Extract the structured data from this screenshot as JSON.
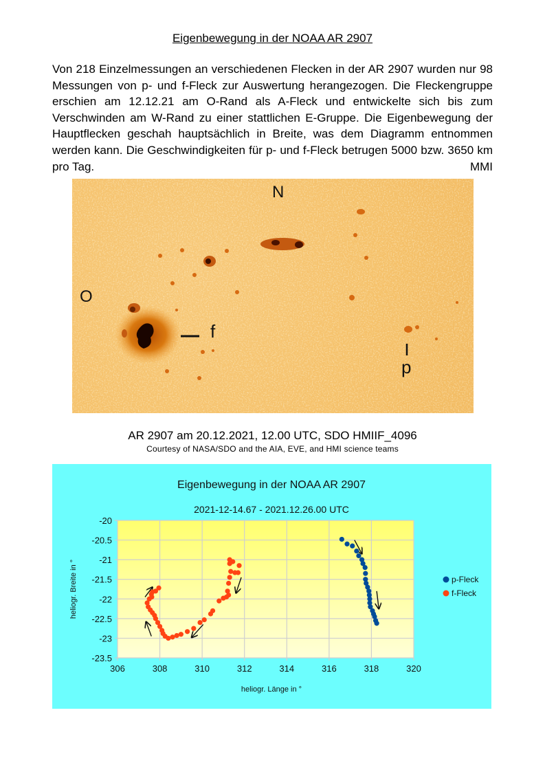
{
  "document": {
    "title": "Eigenbewegung in der NOAA AR 2907",
    "intro_text": "Von 218 Einzelmessungen an verschiedenen Flecken in der AR 2907 wurden nur 98 Messungen von p- und f-Fleck zur Auswertung herangezogen. Die Fleckengruppe erschien am 12.12.21 am O-Rand als A-Fleck und entwickelte sich bis zum Verschwinden am W-Rand zu einer stattlichen E-Gruppe. Die Eigenbewegung der Hauptflecken geschah hauptsächlich in Breite, was dem Diagramm  entnommen werden kann.  Die Geschwindigkeiten für p- und f-Fleck betrugen 5000 bzw. 3650 km pro Tag.",
    "signature": "MMI"
  },
  "solar_image": {
    "labels": {
      "north": "N",
      "east": "O",
      "f_spot": "f",
      "p_spot": "p"
    },
    "caption": "AR 2907 am 20.12.2021, 12.00 UTC, SDO HMIIF_4096",
    "credit": "Courtesy of NASA/SDO and the AIA, EVE, and HMI science teams"
  },
  "colors": {
    "panel_bg": "#6cfefe",
    "plot_top": "#ffff6e",
    "plot_bottom": "#ffffd8",
    "p_fleck": "#004c99",
    "f_fleck": "#ff4413",
    "grid": "#cfcfcf"
  },
  "chart_data": {
    "type": "scatter",
    "title": "Eigenbewegung in der NOAA  AR 2907",
    "subtitle": "2021-12-14.67 - 2021.12.26.00 UTC",
    "xlabel": "heliogr. Länge in °",
    "ylabel": "heliogr. Breite in °",
    "xlim": [
      306,
      320
    ],
    "ylim": [
      -23.5,
      -20
    ],
    "x_ticks": [
      "306",
      "308",
      "310",
      "312",
      "314",
      "316",
      "318",
      "320"
    ],
    "y_ticks": [
      "-20",
      "-20.5",
      "-21",
      "-21.5",
      "-22",
      "-22.5",
      "-23",
      "-23.5"
    ],
    "grid": true,
    "legend_position": "right",
    "series": [
      {
        "name": "p-Fleck",
        "color": "#004c99",
        "x": [
          316.6,
          316.85,
          317.1,
          317.3,
          317.4,
          317.55,
          317.6,
          317.7,
          317.72,
          317.72,
          317.75,
          317.82,
          317.88,
          317.9,
          317.92,
          317.92,
          317.95,
          318.05,
          318.1,
          318.15,
          318.2,
          318.25
        ],
        "y": [
          -20.48,
          -20.6,
          -20.65,
          -20.78,
          -20.9,
          -21.0,
          -21.1,
          -21.2,
          -21.35,
          -21.5,
          -21.6,
          -21.7,
          -21.8,
          -21.9,
          -22.0,
          -22.1,
          -22.2,
          -22.3,
          -22.38,
          -22.45,
          -22.55,
          -22.62
        ]
      },
      {
        "name": "f-Fleck",
        "color": "#ff4413",
        "x": [
          311.75,
          311.45,
          311.3,
          311.3,
          311.7,
          311.55,
          311.35,
          311.3,
          311.25,
          311.2,
          311.25,
          311.15,
          311.0,
          310.8,
          310.5,
          310.4,
          310.1,
          309.9,
          309.6,
          309.3,
          309.0,
          308.8,
          308.6,
          308.4,
          308.25,
          308.15,
          308.1,
          308.0,
          307.9,
          307.8,
          307.75,
          307.65,
          307.55,
          307.45,
          307.4,
          307.5,
          307.62,
          307.6,
          307.65,
          307.8,
          307.95
        ],
        "y": [
          -21.15,
          -21.05,
          -21.0,
          -21.1,
          -21.33,
          -21.33,
          -21.3,
          -21.45,
          -21.6,
          -21.8,
          -21.9,
          -21.95,
          -21.98,
          -22.05,
          -22.3,
          -22.38,
          -22.53,
          -22.6,
          -22.75,
          -22.83,
          -22.9,
          -22.93,
          -22.97,
          -23.0,
          -22.95,
          -22.88,
          -22.8,
          -22.7,
          -22.6,
          -22.5,
          -22.42,
          -22.35,
          -22.28,
          -22.2,
          -22.1,
          -22.0,
          -21.95,
          -21.88,
          -21.82,
          -21.8,
          -21.72
        ]
      }
    ],
    "annotations": [
      {
        "type": "arrow",
        "from": [
          307.3,
          -21.95
        ],
        "to": [
          307.65,
          -21.7
        ],
        "note": "f-Fleck start direction"
      },
      {
        "type": "arrow",
        "from": [
          307.6,
          -22.95
        ],
        "to": [
          307.35,
          -22.58
        ],
        "note": "f-Fleck direction"
      },
      {
        "type": "arrow",
        "from": [
          310.05,
          -22.65
        ],
        "to": [
          309.5,
          -22.98
        ],
        "note": "f-Fleck direction"
      },
      {
        "type": "arrow",
        "from": [
          311.85,
          -21.45
        ],
        "to": [
          311.6,
          -21.85
        ],
        "note": "f-Fleck direction"
      },
      {
        "type": "arrow",
        "from": [
          317.2,
          -20.5
        ],
        "to": [
          317.55,
          -20.85
        ],
        "note": "p-Fleck direction"
      },
      {
        "type": "arrow",
        "from": [
          318.25,
          -21.8
        ],
        "to": [
          318.35,
          -22.25
        ],
        "note": "p-Fleck direction"
      }
    ]
  }
}
